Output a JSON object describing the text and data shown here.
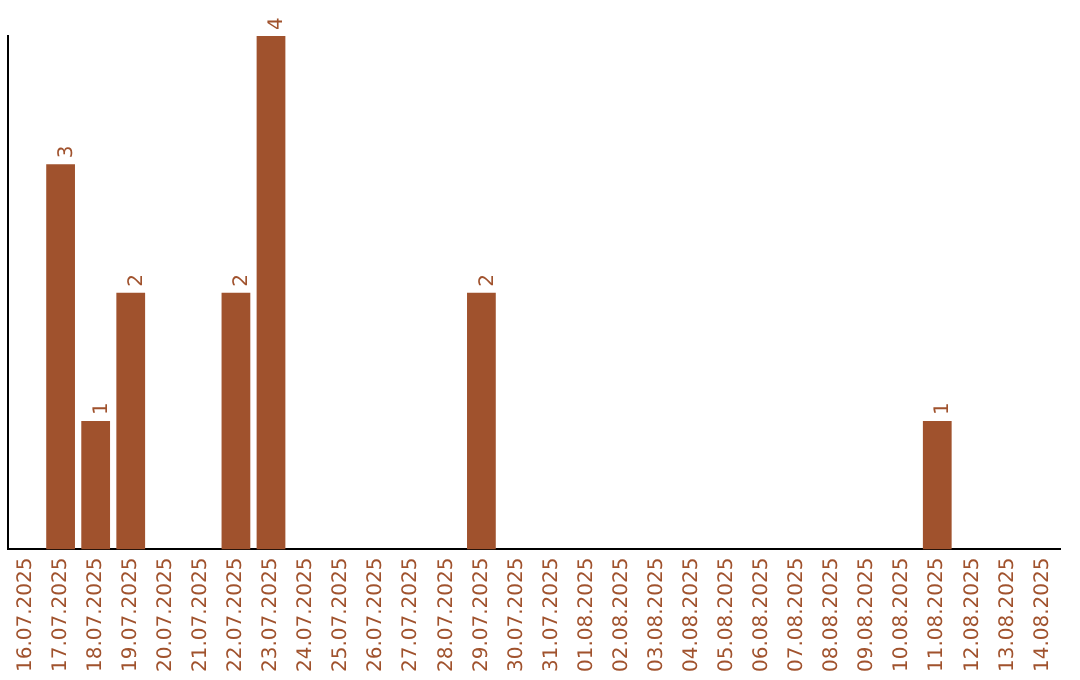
{
  "chart_data": {
    "type": "bar",
    "categories": [
      "16.07.2025",
      "17.07.2025",
      "18.07.2025",
      "19.07.2025",
      "20.07.2025",
      "21.07.2025",
      "22.07.2025",
      "23.07.2025",
      "24.07.2025",
      "25.07.2025",
      "26.07.2025",
      "27.07.2025",
      "28.07.2025",
      "29.07.2025",
      "30.07.2025",
      "31.07.2025",
      "01.08.2025",
      "02.08.2025",
      "03.08.2025",
      "04.08.2025",
      "05.08.2025",
      "06.08.2025",
      "07.08.2025",
      "08.08.2025",
      "09.08.2025",
      "10.08.2025",
      "11.08.2025",
      "12.08.2025",
      "13.08.2025",
      "14.08.2025"
    ],
    "values": [
      0,
      3,
      1,
      2,
      0,
      0,
      2,
      4,
      0,
      0,
      0,
      0,
      0,
      2,
      0,
      0,
      0,
      0,
      0,
      0,
      0,
      0,
      0,
      0,
      0,
      0,
      1,
      0,
      0,
      0
    ],
    "value_labels": [
      null,
      "3",
      "1",
      "2",
      null,
      null,
      "2",
      "4",
      null,
      null,
      null,
      null,
      null,
      "2",
      null,
      null,
      null,
      null,
      null,
      null,
      null,
      null,
      null,
      null,
      null,
      null,
      "1",
      null,
      null,
      null
    ],
    "color": "#a0522d",
    "grid": false,
    "legend": false,
    "tick_labels": "x"
  }
}
